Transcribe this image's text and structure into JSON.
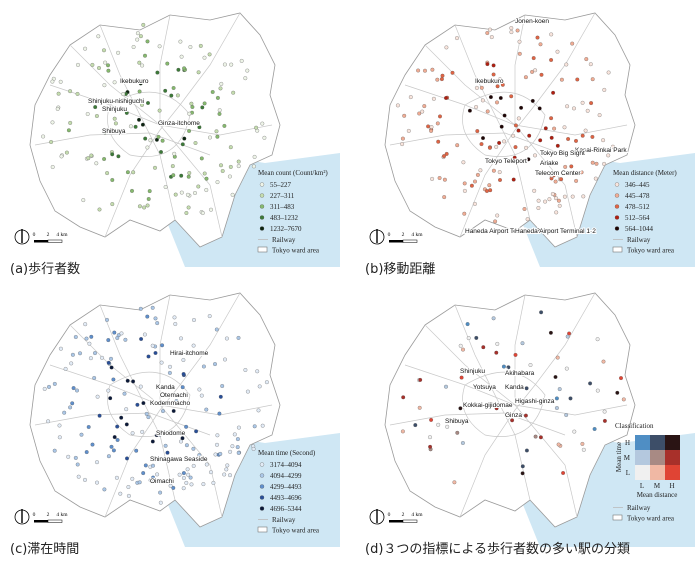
{
  "panels": [
    {
      "caption": "(a)歩行者数",
      "legend": {
        "title": "Mean count (Count/km²)",
        "items": [
          {
            "label": "55–227",
            "color": "#eef4e8"
          },
          {
            "label": "227–311",
            "color": "#c4dcae"
          },
          {
            "label": "311–483",
            "color": "#86b96e"
          },
          {
            "label": "483–1232",
            "color": "#3c7a38"
          },
          {
            "label": "1232–7670",
            "color": "#0c2410"
          }
        ],
        "railway": "Railway",
        "ward_area": "Tokyo ward area"
      },
      "stations": [
        "Ikebukuro",
        "Shinjuku-nishiguchi",
        "Shinjuku",
        "Shibuya",
        "Ginza-itchome"
      ],
      "scale": [
        "0",
        "2",
        "4 km"
      ]
    },
    {
      "caption": "(b)移動距離",
      "legend": {
        "title": "Mean distance (Meter)",
        "items": [
          {
            "label": "346–445",
            "color": "#f8e4dc"
          },
          {
            "label": "445–478",
            "color": "#f0ac94"
          },
          {
            "label": "478–512",
            "color": "#e06444"
          },
          {
            "label": "512–564",
            "color": "#b01e10"
          },
          {
            "label": "564–1044",
            "color": "#1e0404"
          }
        ],
        "railway": "Railway",
        "ward_area": "Tokyo ward area"
      },
      "stations": [
        "Jonen-koen",
        "Ikebukuro",
        "Kasai-Rinkai Park",
        "Tokyo Teleport",
        "Tokyo Big Sight",
        "Ariake",
        "Telecom Center",
        "Haneda Airport Terminal 3",
        "Haneda Airport Terminal 1·2"
      ],
      "scale": [
        "0",
        "2",
        "4 km"
      ]
    },
    {
      "caption": "(c)滞在時間",
      "legend": {
        "title": "Mean time (Second)",
        "items": [
          {
            "label": "3174–4094",
            "color": "#e2ebf6"
          },
          {
            "label": "4094–4299",
            "color": "#aac6e6"
          },
          {
            "label": "4299–4493",
            "color": "#5f8fcc"
          },
          {
            "label": "4493–4696",
            "color": "#284e98"
          },
          {
            "label": "4696–5344",
            "color": "#0a1838"
          }
        ],
        "railway": "Railway",
        "ward_area": "Tokyo ward area"
      },
      "stations": [
        "Hirai-itchome",
        "Otemachi",
        "Kanda",
        "Kodemmacho",
        "Shiodome",
        "Shinagawa Seaside",
        "Oimachi"
      ],
      "scale": [
        "0",
        "2",
        "4 km"
      ]
    },
    {
      "caption": "(d)３つの指標による歩行者数の多い駅の分類",
      "legend": {
        "title": "Classification",
        "y_label": "Mean time",
        "x_label": "Mean distance",
        "y_levels": [
          "H",
          "M",
          "L"
        ],
        "x_levels": [
          "L",
          "M",
          "H"
        ],
        "colors": [
          [
            "#4f8ec4",
            "#3d4e68",
            "#2a1414"
          ],
          [
            "#b4c8de",
            "#a88a84",
            "#a8302a"
          ],
          [
            "#f0f0f0",
            "#f0b8a4",
            "#e04434"
          ]
        ],
        "railway": "Railway",
        "ward_area": "Tokyo ward area"
      },
      "stations": [
        "Shinjuku",
        "Yotsuya",
        "Kokkai-gijidomae",
        "Shibuya",
        "Akihabara",
        "Kanda",
        "Higashi-ginza",
        "Ginza"
      ],
      "scale": [
        "0",
        "2",
        "4 km"
      ]
    }
  ]
}
